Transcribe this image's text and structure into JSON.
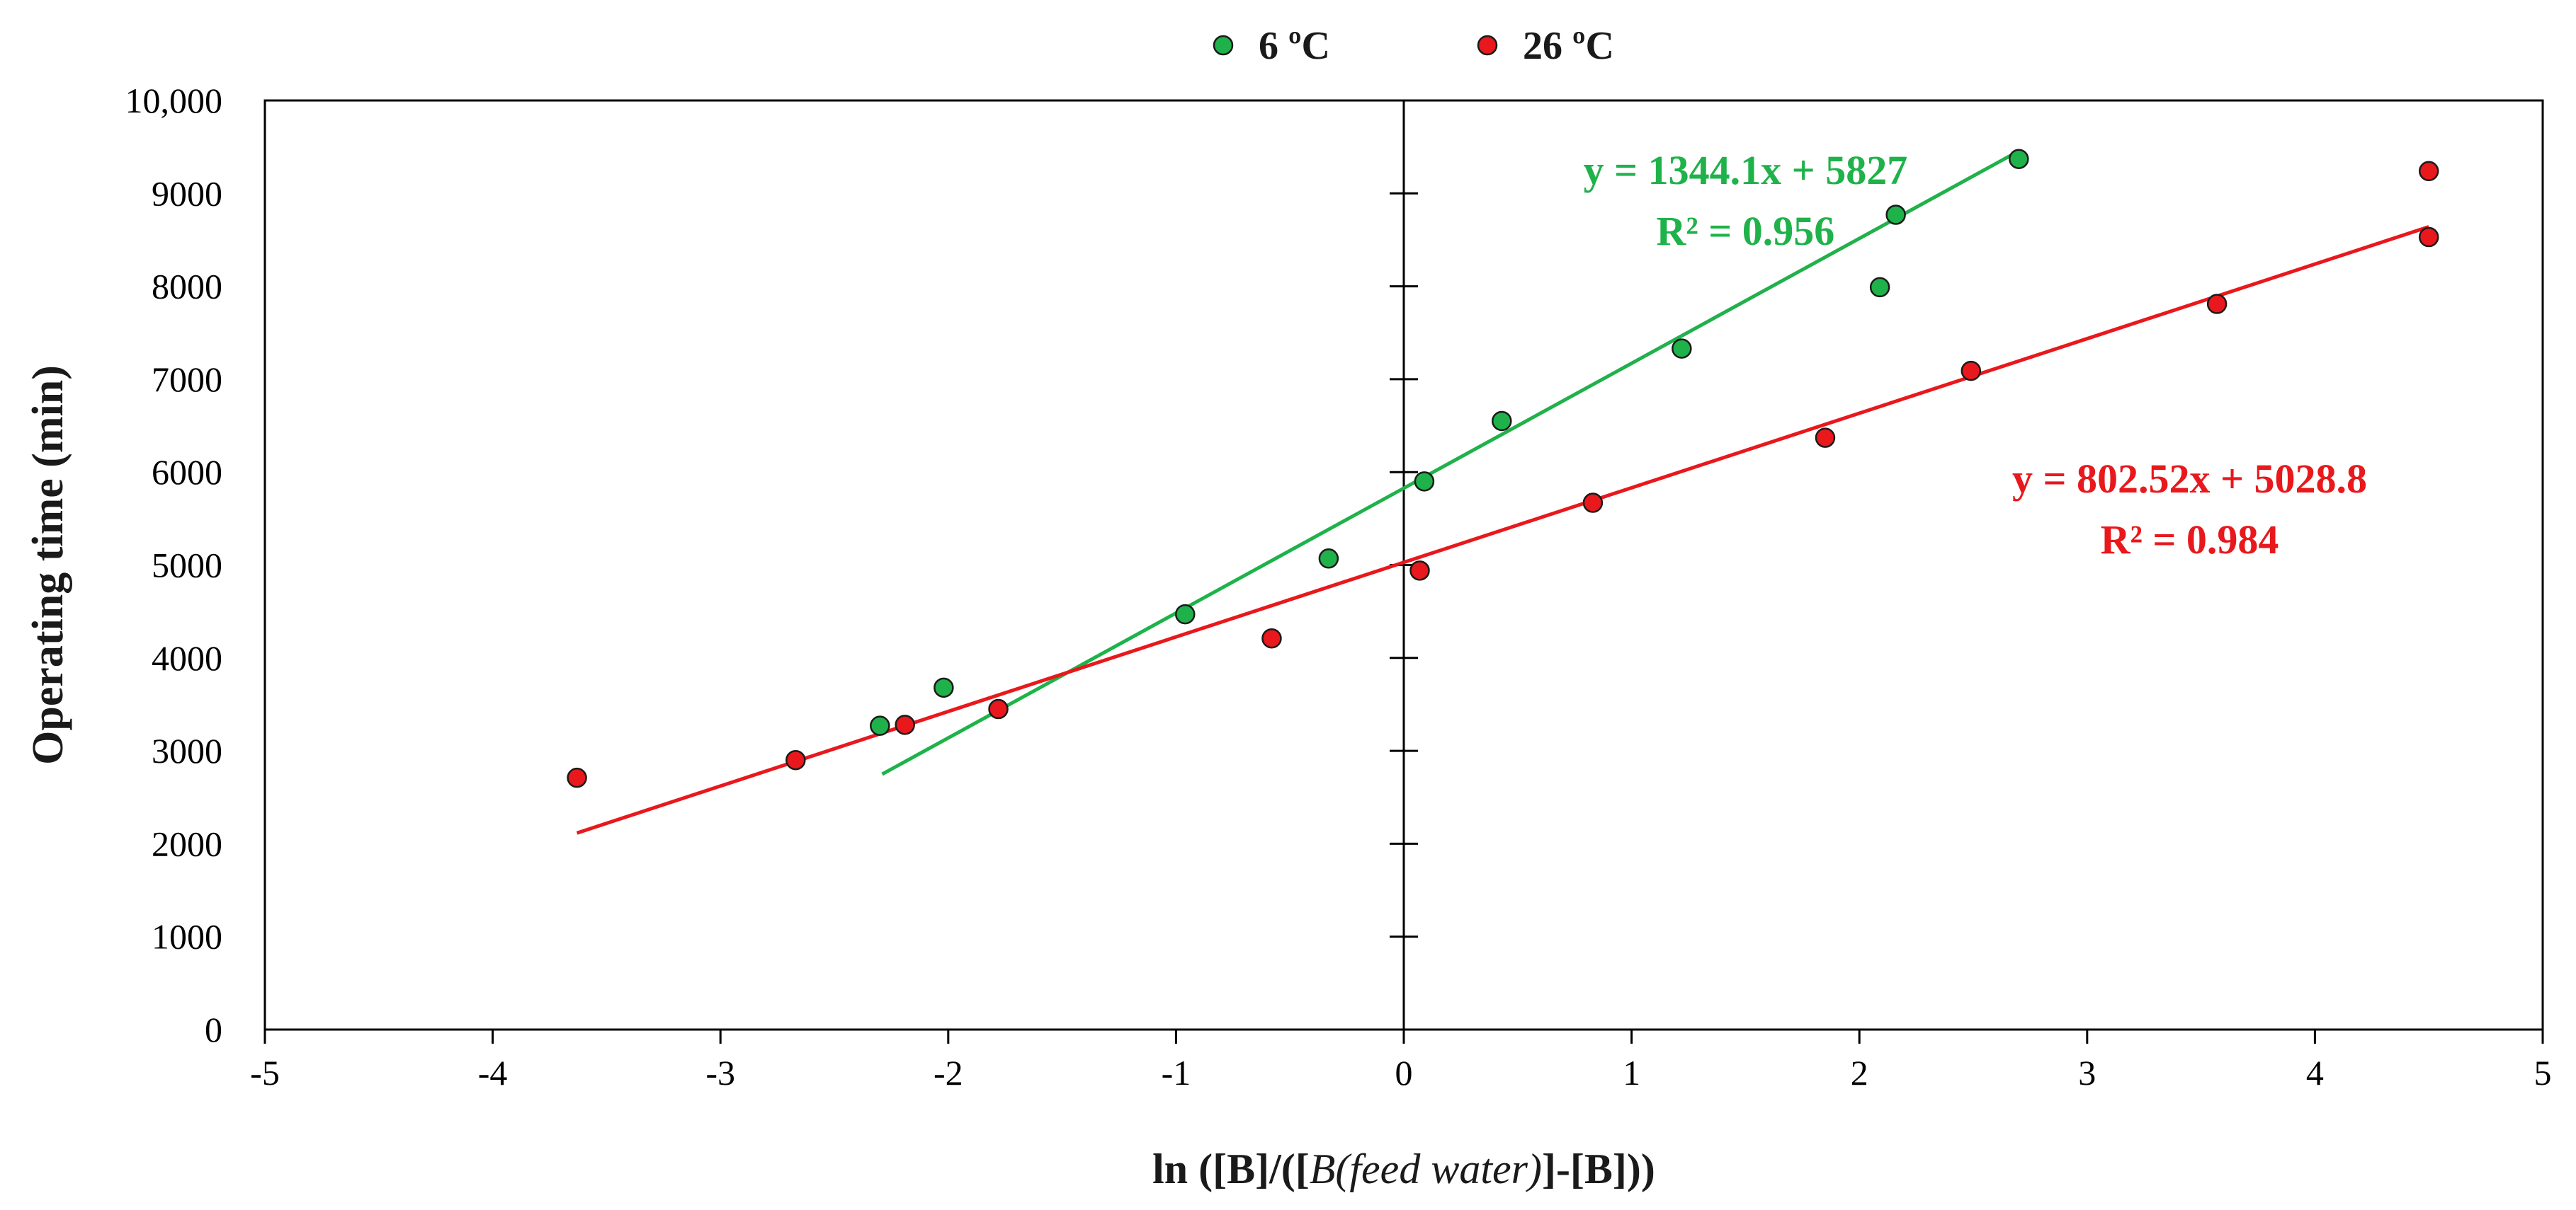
{
  "chart_data": {
    "type": "scatter",
    "title": "",
    "xlabel": "ln ([B]/([B(feed water)]-[B]))",
    "xlabel_parts": {
      "prefix": "ln ([B]/([",
      "italic": "B(feed water)",
      "suffix": "]-[B]))"
    },
    "ylabel": "Operating time (min)",
    "xlim": [
      -5,
      5
    ],
    "ylim": [
      0,
      10000
    ],
    "xticks": [
      -5,
      -4,
      -3,
      -2,
      -1,
      0,
      1,
      2,
      3,
      4,
      5
    ],
    "xtick_labels": [
      "-5",
      "-4",
      "-3",
      "-2",
      "-1",
      "0",
      "1",
      "2",
      "3",
      "4",
      "5"
    ],
    "yticks": [
      0,
      1000,
      2000,
      3000,
      4000,
      5000,
      6000,
      7000,
      8000,
      9000,
      10000
    ],
    "ytick_labels": [
      "0",
      "1000",
      "2000",
      "3000",
      "4000",
      "5000",
      "6000",
      "7000",
      "8000",
      "9000",
      "10,000"
    ],
    "grid": false,
    "legend_position": "top-center",
    "series": [
      {
        "name": "6 ºC",
        "color": "#1fb24a",
        "points": [
          [
            -2.3,
            3270
          ],
          [
            -2.02,
            3680
          ],
          [
            -0.96,
            4470
          ],
          [
            -0.33,
            5070
          ],
          [
            0.09,
            5900
          ],
          [
            0.43,
            6550
          ],
          [
            1.22,
            7330
          ],
          [
            2.09,
            7990
          ],
          [
            2.16,
            8770
          ],
          [
            2.7,
            9370
          ]
        ],
        "trendline": {
          "slope": 1344.1,
          "intercept": 5827,
          "x_range": [
            -2.29,
            2.7
          ],
          "equation": "y = 1344.1x + 5827",
          "r2": "R² = 0.956",
          "annotation_anchor": [
            1.5,
            9100
          ]
        }
      },
      {
        "name": "26 ºC",
        "color": "#e8181c",
        "points": [
          [
            -3.63,
            2710
          ],
          [
            -2.67,
            2900
          ],
          [
            -2.19,
            3280
          ],
          [
            -1.78,
            3450
          ],
          [
            -0.58,
            4210
          ],
          [
            0.07,
            4940
          ],
          [
            0.83,
            5670
          ],
          [
            1.85,
            6370
          ],
          [
            2.49,
            7090
          ],
          [
            3.57,
            7810
          ],
          [
            4.5,
            9240
          ],
          [
            4.5,
            8530
          ]
        ],
        "trendline": {
          "slope": 802.52,
          "intercept": 5028.8,
          "x_range": [
            -3.63,
            4.5
          ],
          "equation": "y = 802.52x + 5028.8",
          "r2": "R² = 0.984",
          "annotation_anchor": [
            3.45,
            5780
          ]
        }
      }
    ]
  }
}
